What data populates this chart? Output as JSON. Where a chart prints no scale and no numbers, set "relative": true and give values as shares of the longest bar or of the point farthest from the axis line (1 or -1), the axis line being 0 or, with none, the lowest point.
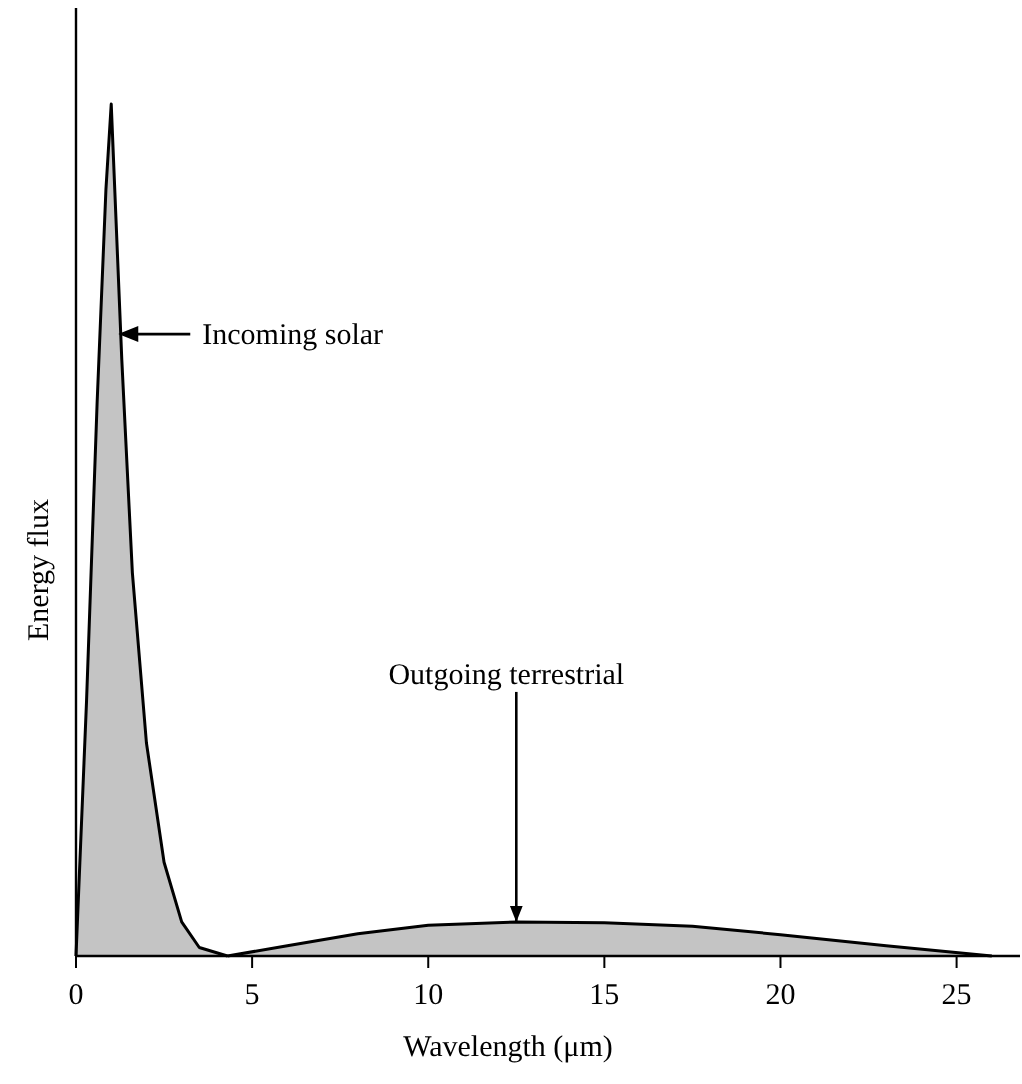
{
  "chart_data": {
    "type": "area",
    "relative": true,
    "xlabel": "Wavelength (μm)",
    "ylabel": "Energy flux",
    "xlim": [
      0,
      26.8
    ],
    "xticks": [
      0,
      5,
      10,
      15,
      20,
      25
    ],
    "series": [
      {
        "color": "#c4c4c4",
        "x": [
          0,
          0.3,
          0.6,
          0.85,
          1.0,
          1.15,
          1.3,
          1.6,
          2.0,
          2.5,
          3.0,
          3.5,
          4.3
        ],
        "values": [
          0,
          0.3,
          0.65,
          0.9,
          1,
          0.85,
          0.7,
          0.45,
          0.25,
          0.11,
          0.04,
          0.01,
          0
        ]
      },
      {
        "color": "#c4c4c4",
        "x": [
          4.3,
          6,
          8,
          10,
          12.5,
          15,
          17.5,
          20,
          23,
          26
        ],
        "values": [
          0,
          0.012,
          0.026,
          0.036,
          0.04,
          0.039,
          0.035,
          0.025,
          0.012,
          0
        ]
      }
    ],
    "annotations": [
      {
        "text": "Incoming solar",
        "x": 1.2,
        "y": 0.73
      },
      {
        "text": "Outgoing terrestrial",
        "x": 12.5,
        "y": 0.04
      }
    ]
  }
}
